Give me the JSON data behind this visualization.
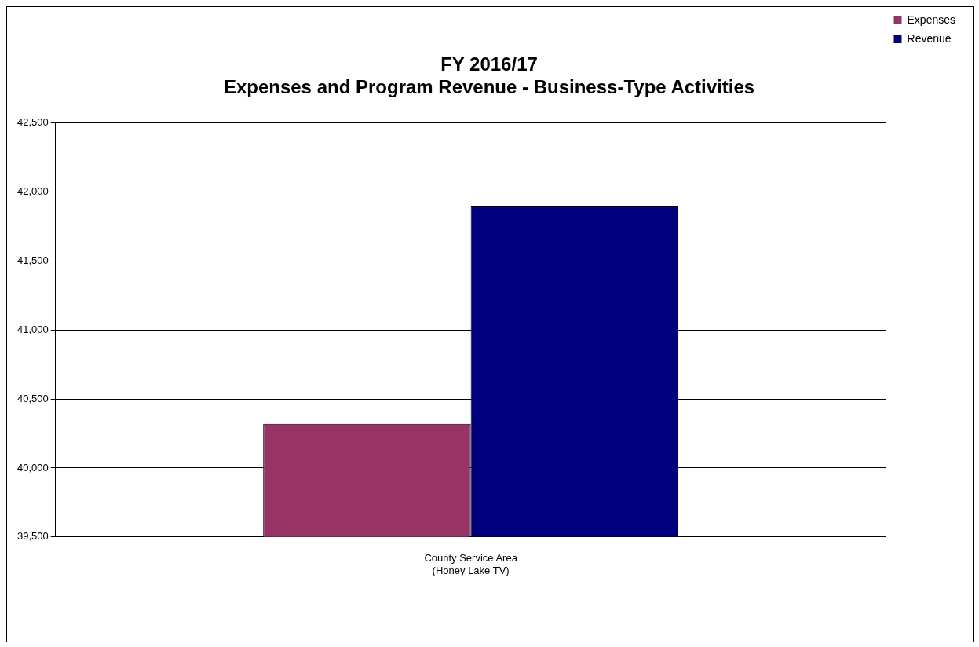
{
  "chart_data": {
    "type": "bar",
    "title": "FY 2016/17\nExpenses and Program Revenue - Business-Type Activities",
    "categories": [
      "County Service Area\n(Honey Lake TV)"
    ],
    "series": [
      {
        "name": "Expenses",
        "color": "#993366",
        "values": [
          40320
        ]
      },
      {
        "name": "Revenue",
        "color": "#000080",
        "values": [
          41900
        ]
      }
    ],
    "ylim": [
      39500,
      42500
    ],
    "yticks": [
      {
        "value": 39500,
        "label": "39,500"
      },
      {
        "value": 40000,
        "label": "40,000"
      },
      {
        "value": 40500,
        "label": "40,500"
      },
      {
        "value": 41000,
        "label": "41,000"
      },
      {
        "value": 41500,
        "label": "41,500"
      },
      {
        "value": 42000,
        "label": "42,000"
      },
      {
        "value": 42500,
        "label": "42,500"
      }
    ],
    "grid": "y",
    "legend": "top right"
  }
}
